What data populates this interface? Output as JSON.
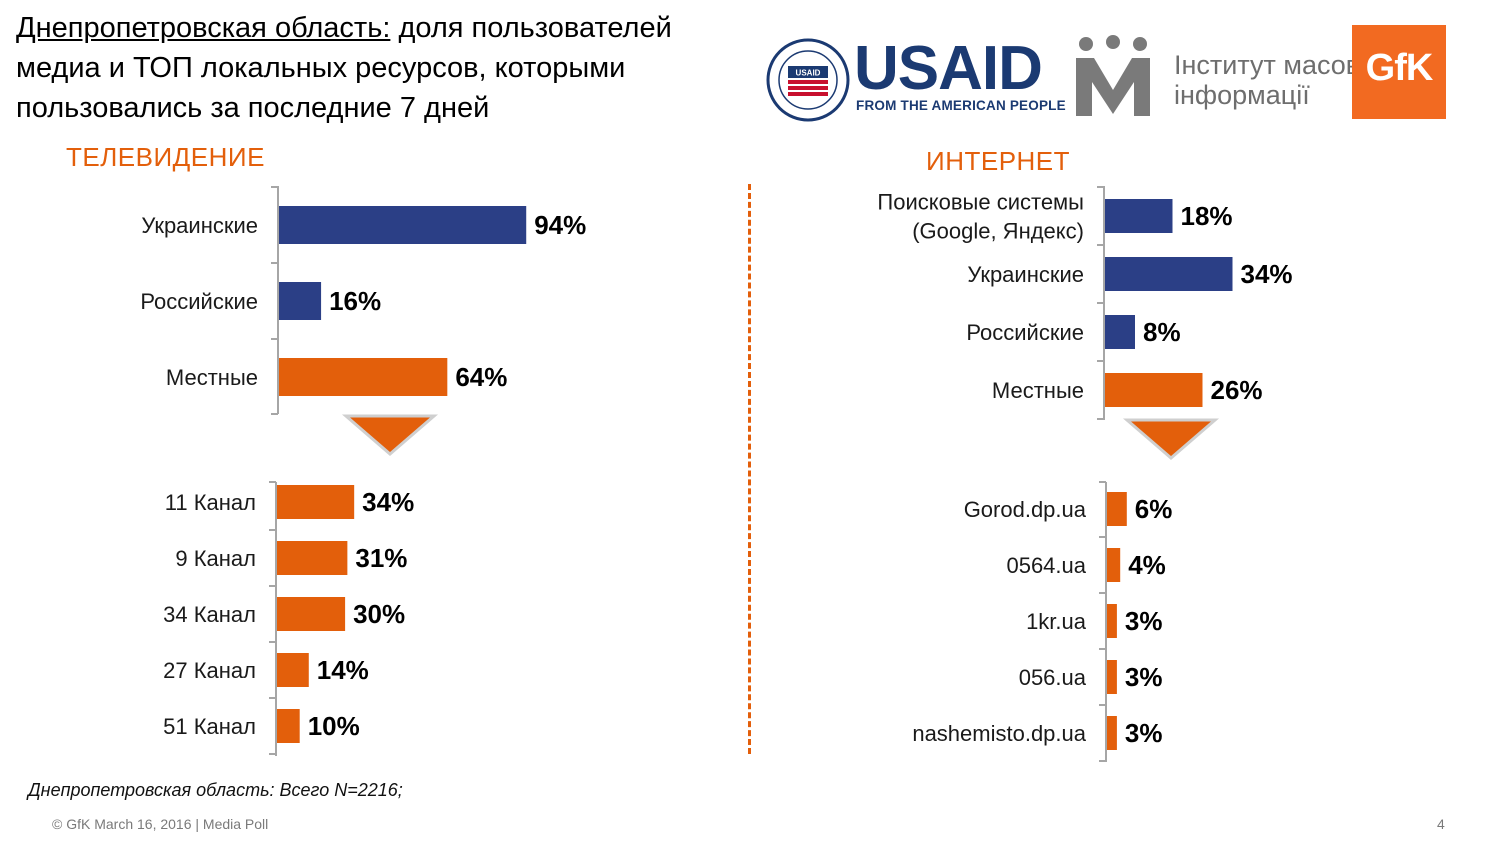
{
  "title": {
    "region": "Днепропетровская область:",
    "rest_line1": " доля пользователей",
    "line2": "медиа и ТОП локальных ресурсов, которыми",
    "line3": "пользовались за последние 7 дней"
  },
  "logos": {
    "usaid_name": "USAID",
    "usaid_tagline": "FROM THE AMERICAN PEOPLE",
    "usaid_seal_text": "USAID",
    "imi_line1": "Інститут масової",
    "imi_line2": "інформації",
    "gfk": "GfK"
  },
  "colors": {
    "blue": "#2b3f86",
    "orange": "#e35f0b",
    "axis": "#a6a6a6"
  },
  "sections": {
    "tv": "ТЕЛЕВИДЕНИЕ",
    "internet": "ИНТЕРНЕТ"
  },
  "chart_data": [
    {
      "type": "bar",
      "orientation": "horizontal",
      "title": "ТЕЛЕВИДЕНИЕ",
      "categories": [
        "Украинские",
        "Российские",
        "Местные"
      ],
      "values": [
        94,
        16,
        64
      ],
      "labels": [
        "94%",
        "16%",
        "64%"
      ],
      "colors": [
        "#2b3f86",
        "#2b3f86",
        "#e35f0b"
      ],
      "xlim": [
        0,
        100
      ]
    },
    {
      "type": "bar",
      "orientation": "horizontal",
      "title": "",
      "categories": [
        "11 Канал",
        "9 Канал",
        "34 Канал",
        "27 Канал",
        "51 Канал"
      ],
      "values": [
        34,
        31,
        30,
        14,
        10
      ],
      "labels": [
        "34%",
        "31%",
        "30%",
        "14%",
        "10%"
      ],
      "colors": [
        "#e35f0b",
        "#e35f0b",
        "#e35f0b",
        "#e35f0b",
        "#e35f0b"
      ],
      "xlim": [
        0,
        100
      ]
    },
    {
      "type": "bar",
      "orientation": "horizontal",
      "title": "ИНТЕРНЕТ",
      "categories": [
        [
          "Поисковые системы",
          "(Google, Яндекс)"
        ],
        "Украинские",
        "Российские",
        "Местные"
      ],
      "values": [
        18,
        34,
        8,
        26
      ],
      "labels": [
        "18%",
        "34%",
        "8%",
        "26%"
      ],
      "colors": [
        "#2b3f86",
        "#2b3f86",
        "#2b3f86",
        "#e35f0b"
      ],
      "xlim": [
        0,
        100
      ]
    },
    {
      "type": "bar",
      "orientation": "horizontal",
      "title": "",
      "categories": [
        "Gorod.dp.ua",
        "0564.ua",
        "1kr.ua",
        "056.ua",
        "nashemisto.dp.ua"
      ],
      "values": [
        6,
        4,
        3,
        3,
        3
      ],
      "labels": [
        "6%",
        "4%",
        "3%",
        "3%",
        "3%"
      ],
      "colors": [
        "#e35f0b",
        "#e35f0b",
        "#e35f0b",
        "#e35f0b",
        "#e35f0b"
      ],
      "xlim": [
        0,
        100
      ]
    }
  ],
  "footnote": "Днепропетровская область: Всего N=2216;",
  "footer": "© GfK March 16, 2016 | Media Poll",
  "page_number": "4"
}
